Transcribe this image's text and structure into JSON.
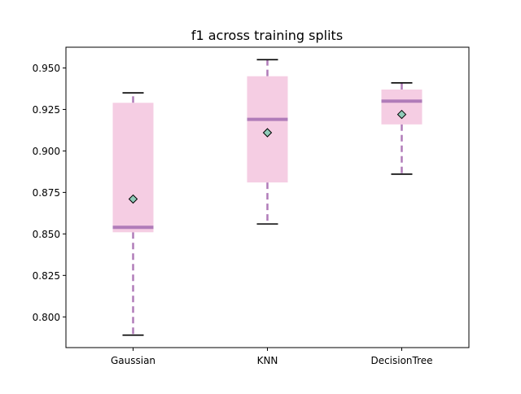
{
  "chart_data": {
    "type": "box",
    "title": "f1 across training splits",
    "xlabel": "",
    "ylabel": "",
    "ylim": [
      0.7815,
      0.9625
    ],
    "yticks": [
      0.8,
      0.825,
      0.85,
      0.875,
      0.9,
      0.925,
      0.95
    ],
    "ytick_labels": [
      "0.800",
      "0.825",
      "0.850",
      "0.875",
      "0.900",
      "0.925",
      "0.950"
    ],
    "categories": [
      "Gaussian",
      "KNN",
      "DecisionTree"
    ],
    "boxes": [
      {
        "category": "Gaussian",
        "whisker_low": 0.789,
        "q1": 0.851,
        "median": 0.854,
        "q3": 0.929,
        "whisker_high": 0.935,
        "mean": 0.871
      },
      {
        "category": "KNN",
        "whisker_low": 0.856,
        "q1": 0.881,
        "median": 0.919,
        "q3": 0.945,
        "whisker_high": 0.955,
        "mean": 0.911
      },
      {
        "category": "DecisionTree",
        "whisker_low": 0.886,
        "q1": 0.916,
        "median": 0.93,
        "q3": 0.937,
        "whisker_high": 0.941,
        "mean": 0.922
      }
    ],
    "grid": false,
    "legend": "none",
    "colors": {
      "box_fill": "#f5cde3",
      "median": "#b07cb9",
      "whisker": "#b07cb9",
      "cap": "#000000",
      "mean_marker": "#8fcbb9"
    }
  }
}
